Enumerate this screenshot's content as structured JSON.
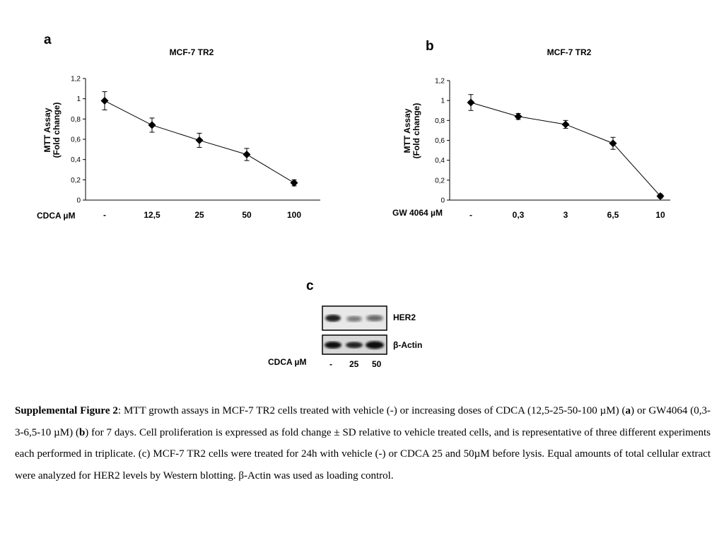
{
  "panels": {
    "a": "a",
    "b": "b",
    "c": "c"
  },
  "chart_data": [
    {
      "type": "line",
      "panel": "a",
      "title": "MCF-7 TR2",
      "ylabel_line1": "MTT Assay",
      "ylabel_line2": "(Fold change)",
      "xlabel": "CDCA µM",
      "categories": [
        "-",
        "12,5",
        "25",
        "50",
        "100"
      ],
      "values": [
        0.98,
        0.74,
        0.59,
        0.45,
        0.17
      ],
      "errors": [
        0.09,
        0.07,
        0.07,
        0.06,
        0.03
      ],
      "ylim": [
        0,
        1.2
      ],
      "yticks": [
        0,
        0.2,
        0.4,
        0.6,
        0.8,
        1,
        1.2
      ],
      "ytick_labels": [
        "0",
        "0,2",
        "0,4",
        "0,6",
        "0,8",
        "1",
        "1,2"
      ],
      "marker": "diamond",
      "grid": false
    },
    {
      "type": "line",
      "panel": "b",
      "title": "MCF-7 TR2",
      "ylabel_line1": "MTT Assay",
      "ylabel_line2": "(Fold change)",
      "xlabel": "GW 4064 µM",
      "categories": [
        "-",
        "0,3",
        "3",
        "6,5",
        "10"
      ],
      "values": [
        0.98,
        0.84,
        0.76,
        0.57,
        0.04
      ],
      "errors": [
        0.08,
        0.03,
        0.04,
        0.06,
        0.02
      ],
      "ylim": [
        0,
        1.2
      ],
      "yticks": [
        0,
        0.2,
        0.4,
        0.6,
        0.8,
        1,
        1.2
      ],
      "ytick_labels": [
        "0",
        "0,2",
        "0,4",
        "0,6",
        "0,8",
        "1",
        "1,2"
      ],
      "marker": "diamond",
      "grid": false
    }
  ],
  "western_blot": {
    "bands": [
      "HER2",
      "β-Actin"
    ],
    "treatment_label": "CDCA µM",
    "lanes": [
      "-",
      "25",
      "50"
    ]
  },
  "caption": {
    "bold_title": "Supplemental Figure 2",
    "part1": ":  MTT growth assays in MCF-7 TR2 cells treated with vehicle (-) or increasing doses of CDCA (12,5-25-50-100 µM) (",
    "a_bold": "a",
    "part2": ") or GW4064 (0,3-3-6,5-10 µM) (",
    "b_bold": "b",
    "part3": ") for 7 days. Cell proliferation is expressed as fold change ± SD relative to vehicle treated cells, and is representative of three different experiments each performed in triplicate. (c) MCF-7 TR2 cells were treated for 24h with vehicle (-) or CDCA 25 and 50µM before lysis. Equal amounts of total cellular extract were analyzed for HER2 levels by Western blotting. β-Actin was used as loading control."
  }
}
